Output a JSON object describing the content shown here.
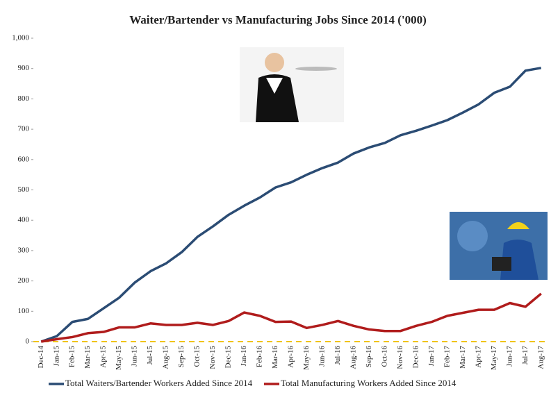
{
  "chart_data": {
    "type": "line",
    "title": "Waiter/Bartender vs Manufacturing Jobs Since 2014 ('000)",
    "categories": [
      "Dec-14",
      "Jan-15",
      "Feb-15",
      "Mar-15",
      "Apr-15",
      "May-15",
      "Jun-15",
      "Jul-15",
      "Aug-15",
      "Sep-15",
      "Oct-15",
      "Nov-15",
      "Dec-15",
      "Jan-16",
      "Feb-16",
      "Mar-16",
      "Apr-16",
      "May-16",
      "Jun-16",
      "Jul-16",
      "Aug-16",
      "Sep-16",
      "Oct-16",
      "Nov-16",
      "Dec-16",
      "Jan-17",
      "Feb-17",
      "Mar-17",
      "Apr-17",
      "May-17",
      "Jun-17",
      "Jul-17",
      "Aug-17"
    ],
    "series": [
      {
        "name": "Total Waiters/Bartender Workers Added Since 2014",
        "color": "#2b4c74",
        "values": [
          0,
          18,
          65,
          75,
          110,
          145,
          195,
          232,
          258,
          295,
          345,
          380,
          418,
          448,
          475,
          508,
          525,
          550,
          572,
          590,
          620,
          640,
          655,
          680,
          695,
          712,
          730,
          755,
          782,
          820,
          840,
          893,
          902
        ]
      },
      {
        "name": "Total Manufacturing Workers Added Since 2014",
        "color": "#b01c1c",
        "values": [
          0,
          8,
          15,
          28,
          32,
          47,
          47,
          60,
          55,
          55,
          62,
          55,
          68,
          96,
          85,
          65,
          66,
          45,
          55,
          68,
          52,
          40,
          35,
          35,
          52,
          65,
          85,
          95,
          105,
          105,
          127,
          115,
          158
        ]
      }
    ],
    "ylim": [
      0,
      1000
    ],
    "yticks": [
      0,
      100,
      200,
      300,
      400,
      500,
      600,
      700,
      800,
      900,
      {
        "value": 1000,
        "label": "1,000"
      }
    ],
    "legend": "bottom"
  }
}
